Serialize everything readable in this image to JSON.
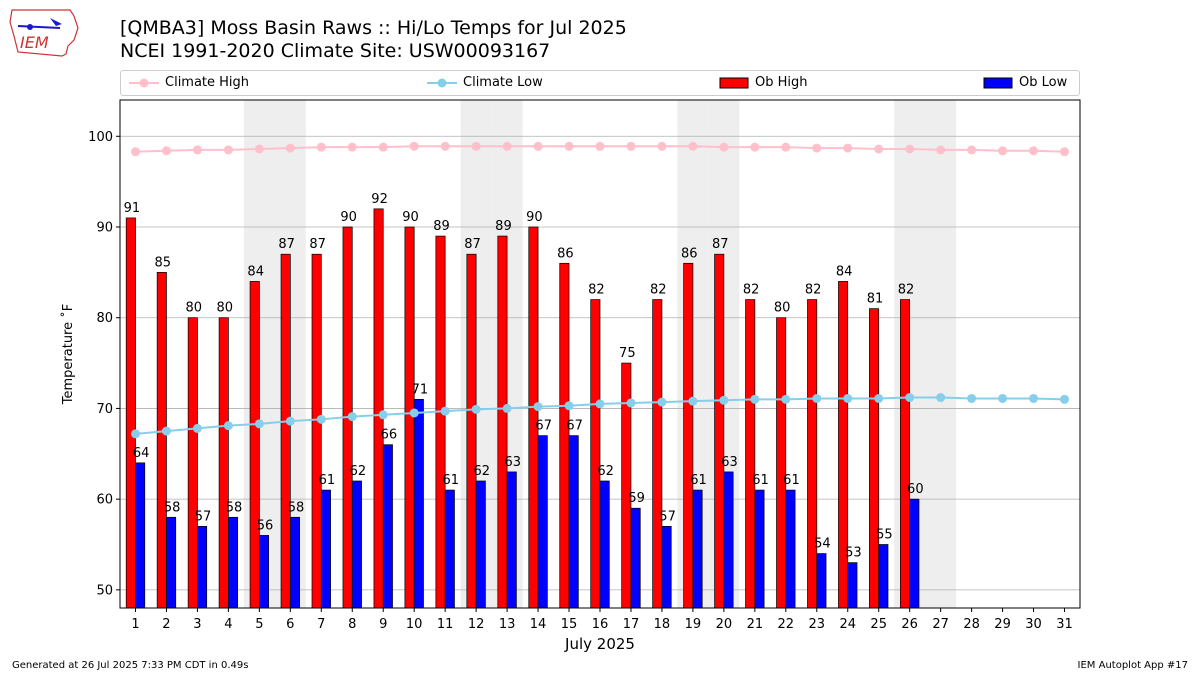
{
  "header": {
    "logo_text": "IEM",
    "title_line1": "[QMBA3] Moss Basin Raws :: Hi/Lo Temps for Jul 2025",
    "title_line2": "NCEI 1991-2020 Climate Site: USW00093167"
  },
  "legend": {
    "climate_high": "Climate High",
    "climate_low": "Climate Low",
    "ob_high": "Ob High",
    "ob_low": "Ob Low"
  },
  "colors": {
    "ob_high": "#ff0000",
    "ob_low": "#0000ff",
    "climate_high": "#ffc0cb",
    "climate_low": "#87ceeb",
    "weekend_shade": "#eeeeee",
    "grid": "#b0b0b0"
  },
  "footer": {
    "left": "Generated at 26 Jul 2025 7:33 PM CDT in 0.49s",
    "right": "IEM Autoplot App #17"
  },
  "chart_data": {
    "type": "bar",
    "xlabel": "July 2025",
    "ylabel": "Temperature ˚F",
    "ylim": [
      48,
      104
    ],
    "yticks": [
      50,
      60,
      70,
      80,
      90,
      100
    ],
    "grid": "horizontal",
    "legend_position": "top",
    "categories": [
      "1",
      "2",
      "3",
      "4",
      "5",
      "6",
      "7",
      "8",
      "9",
      "10",
      "11",
      "12",
      "13",
      "14",
      "15",
      "16",
      "17",
      "18",
      "19",
      "20",
      "21",
      "22",
      "23",
      "24",
      "25",
      "26",
      "27",
      "28",
      "29",
      "30",
      "31"
    ],
    "shaded_days": [
      5,
      6,
      12,
      13,
      19,
      20,
      26,
      27
    ],
    "series": [
      {
        "name": "Ob High",
        "kind": "bar",
        "values": [
          91,
          85,
          80,
          80,
          84,
          87,
          87,
          90,
          92,
          90,
          89,
          87,
          89,
          90,
          86,
          82,
          75,
          82,
          86,
          87,
          82,
          80,
          82,
          84,
          81,
          82,
          null,
          null,
          null,
          null,
          null
        ]
      },
      {
        "name": "Ob Low",
        "kind": "bar",
        "values": [
          64,
          58,
          57,
          58,
          56,
          58,
          61,
          62,
          66,
          71,
          61,
          62,
          63,
          67,
          67,
          62,
          59,
          57,
          61,
          63,
          61,
          61,
          54,
          53,
          55,
          60,
          null,
          null,
          null,
          null,
          null
        ]
      },
      {
        "name": "Climate High",
        "kind": "line",
        "values": [
          98.3,
          98.4,
          98.5,
          98.5,
          98.6,
          98.7,
          98.8,
          98.8,
          98.8,
          98.9,
          98.9,
          98.9,
          98.9,
          98.9,
          98.9,
          98.9,
          98.9,
          98.9,
          98.9,
          98.8,
          98.8,
          98.8,
          98.7,
          98.7,
          98.6,
          98.6,
          98.5,
          98.5,
          98.4,
          98.4,
          98.3
        ]
      },
      {
        "name": "Climate Low",
        "kind": "line",
        "values": [
          67.2,
          67.5,
          67.8,
          68.1,
          68.3,
          68.6,
          68.8,
          69.1,
          69.3,
          69.5,
          69.7,
          69.9,
          70.0,
          70.2,
          70.3,
          70.5,
          70.6,
          70.7,
          70.8,
          70.9,
          71.0,
          71.0,
          71.1,
          71.1,
          71.1,
          71.2,
          71.2,
          71.1,
          71.1,
          71.1,
          71.0
        ]
      }
    ]
  }
}
